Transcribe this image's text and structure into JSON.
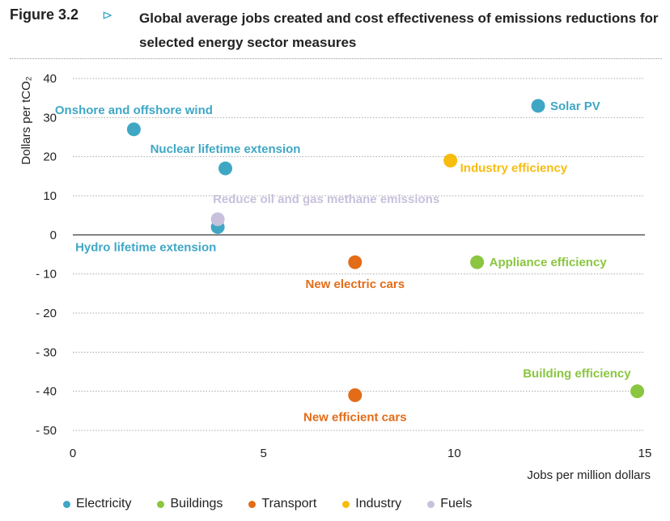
{
  "figure": {
    "label": "Figure 3.2",
    "arrow": "⊳",
    "title": "Global average jobs created and cost effectiveness of emissions reductions for selected energy sector measures"
  },
  "chart_data": {
    "type": "scatter",
    "xlabel": "Jobs per million dollars",
    "ylabel": "Dollars per tCO₂",
    "xlim": [
      0,
      15
    ],
    "ylim": [
      -50,
      40
    ],
    "xticks": [
      0,
      5,
      10,
      15
    ],
    "yticks": [
      40,
      30,
      20,
      10,
      0,
      -10,
      -20,
      -30,
      -40,
      -50
    ],
    "grid": "horizontal dotted",
    "legend_position": "bottom",
    "categories": [
      {
        "name": "Electricity",
        "color": "#3fa7c4"
      },
      {
        "name": "Buildings",
        "color": "#8ac640"
      },
      {
        "name": "Transport",
        "color": "#e36c18"
      },
      {
        "name": "Industry",
        "color": "#f8bc0e"
      },
      {
        "name": "Fuels",
        "color": "#c8c0dc"
      }
    ],
    "points": [
      {
        "label": "Onshore and offshore wind",
        "category": "Electricity",
        "x": 1.6,
        "y": 27,
        "label_pos": "above"
      },
      {
        "label": "Nuclear lifetime extension",
        "category": "Electricity",
        "x": 4.0,
        "y": 17,
        "label_pos": "above"
      },
      {
        "label": "Hydro lifetime extension",
        "category": "Electricity",
        "x": 3.8,
        "y": 2,
        "label_pos": "below-left"
      },
      {
        "label": "Solar PV",
        "category": "Electricity",
        "x": 12.2,
        "y": 33,
        "label_pos": "right"
      },
      {
        "label": "Reduce oil and gas methane emissions",
        "category": "Fuels",
        "x": 3.8,
        "y": 4,
        "label_pos": "above-right"
      },
      {
        "label": "New electric cars",
        "category": "Transport",
        "x": 7.4,
        "y": -7,
        "label_pos": "below"
      },
      {
        "label": "New efficient cars",
        "category": "Transport",
        "x": 7.4,
        "y": -41,
        "label_pos": "below"
      },
      {
        "label": "Industry efficiency",
        "category": "Industry",
        "x": 9.9,
        "y": 19,
        "label_pos": "right-below"
      },
      {
        "label": "Appliance efficiency",
        "category": "Buildings",
        "x": 10.6,
        "y": -7,
        "label_pos": "right"
      },
      {
        "label": "Building efficiency",
        "category": "Buildings",
        "x": 14.8,
        "y": -40,
        "label_pos": "above-left"
      }
    ]
  }
}
